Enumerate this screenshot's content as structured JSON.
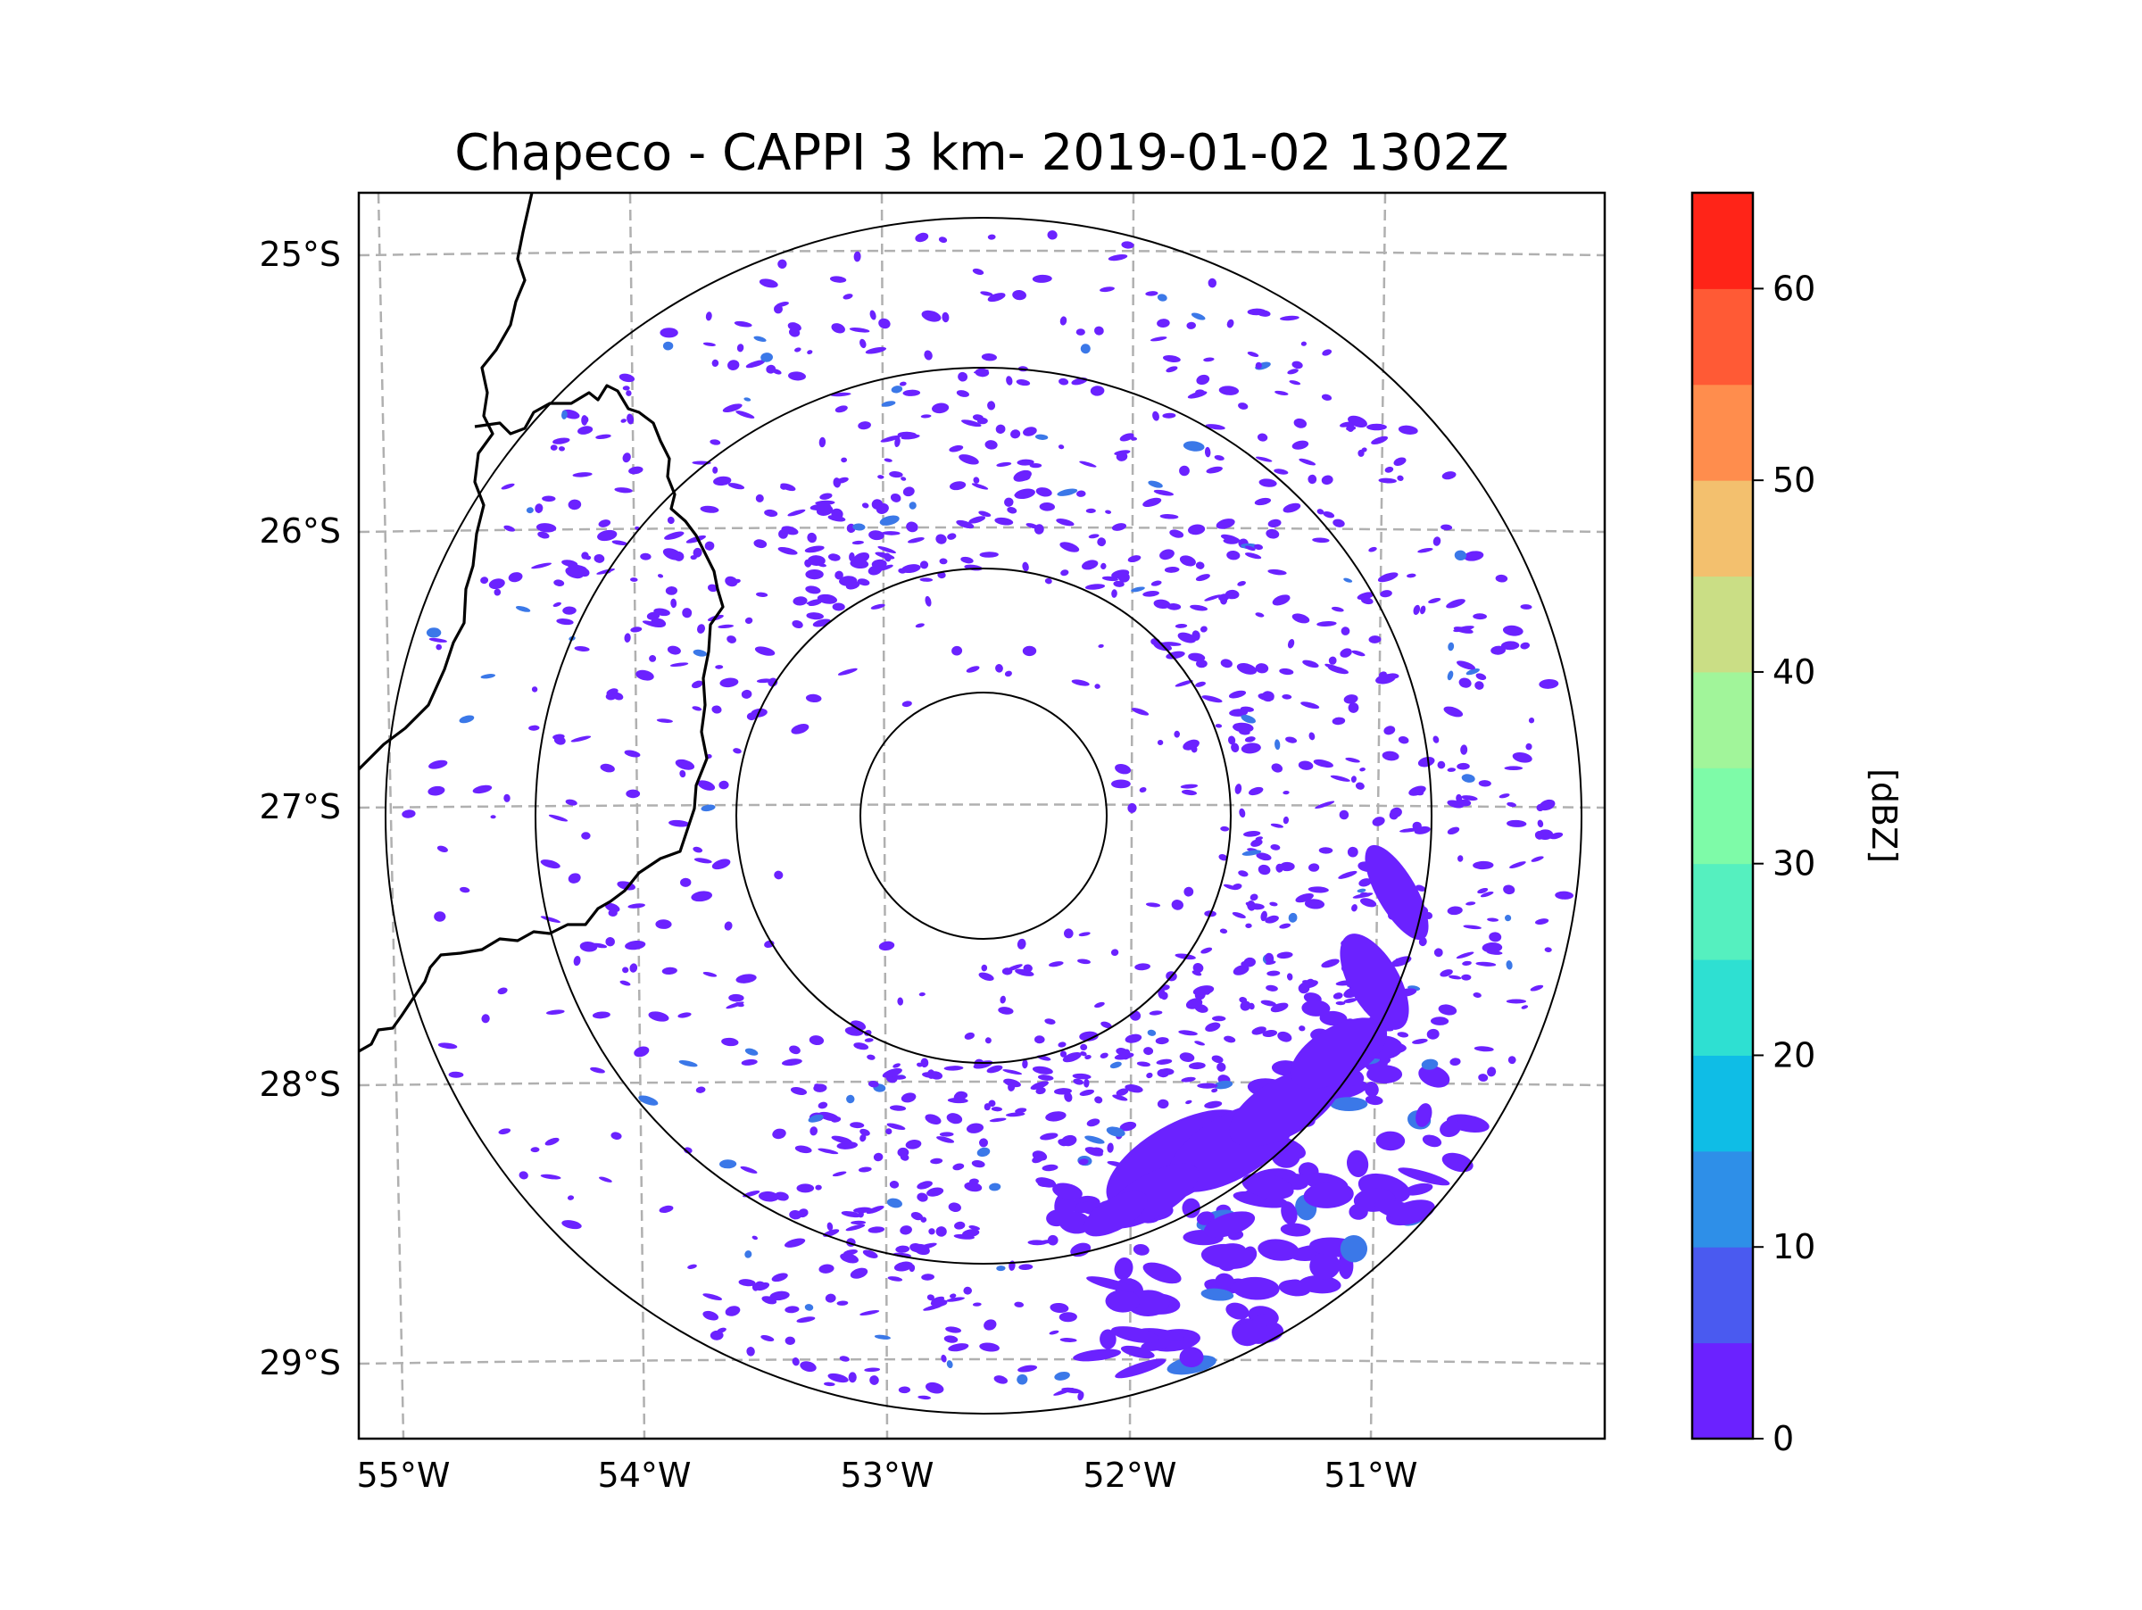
{
  "title": "Chapeco - CAPPI 3 km- 2019-01-02 1302Z",
  "map": {
    "lon_labels": [
      "55°W",
      "54°W",
      "53°W",
      "52°W",
      "51°W"
    ],
    "lat_labels": [
      "25°S",
      "26°S",
      "27°S",
      "28°S",
      "29°S"
    ],
    "range_rings": 4,
    "gridline_color": "#b0b0b0",
    "echo_color": "#6b22ff",
    "echo_strong_color": "#3b78e8"
  },
  "colorbar": {
    "label": "[dBZ]",
    "tick_labels": [
      "0",
      "10",
      "20",
      "30",
      "40",
      "50",
      "60"
    ],
    "min": 0,
    "max": 65,
    "step": 5,
    "colors": [
      "#6b22ff",
      "#4a5af0",
      "#2e8fe8",
      "#0fbde6",
      "#2ee0d2",
      "#55f0bf",
      "#7efba8",
      "#a1f59a",
      "#cade85",
      "#f3c06e",
      "#ff8d4d",
      "#ff5a35",
      "#ff2418"
    ]
  }
}
